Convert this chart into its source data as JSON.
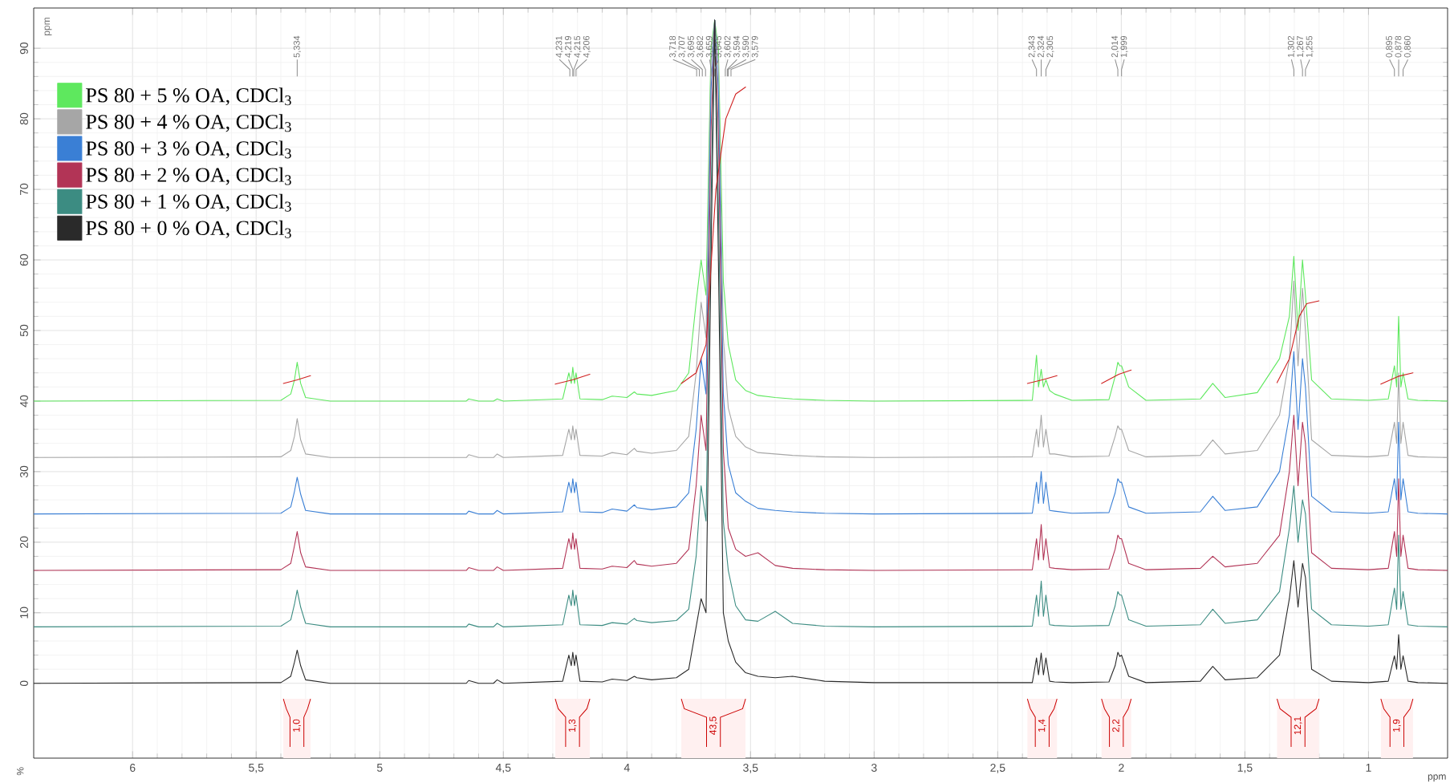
{
  "chart_data": {
    "type": "line",
    "xlabel": "ppm",
    "ylabel": "%",
    "xlim": [
      6.4,
      0.68
    ],
    "ylim": [
      -10.6,
      95.7
    ],
    "xticks": [
      6,
      {
        "value": 5.5,
        "label": "5,5"
      },
      5,
      {
        "value": 4.5,
        "label": "4,5"
      },
      4,
      {
        "value": 3.5,
        "label": "3,5"
      },
      3,
      {
        "value": 2.5,
        "label": "2,5"
      },
      2,
      {
        "value": 1.5,
        "label": "1,5"
      },
      1
    ],
    "yticks": [
      0,
      10,
      20,
      30,
      40,
      50,
      60,
      70,
      80,
      90
    ],
    "grid": true,
    "legend": "top left",
    "marker": "none",
    "line_style": "solid",
    "x": [
      6.4,
      5.4,
      5.36,
      5.345,
      5.334,
      5.32,
      5.3,
      5.2,
      4.65,
      4.64,
      4.6,
      4.54,
      4.525,
      4.5,
      4.26,
      4.235,
      4.225,
      4.219,
      4.212,
      4.206,
      4.19,
      4.1,
      4.06,
      4.0,
      3.97,
      3.96,
      3.9,
      3.8,
      3.75,
      3.72,
      3.7,
      3.68,
      3.66,
      3.645,
      3.63,
      3.61,
      3.59,
      3.56,
      3.52,
      3.47,
      3.4,
      3.33,
      3.2,
      3.0,
      2.36,
      2.343,
      2.335,
      2.324,
      2.315,
      2.305,
      2.29,
      2.27,
      2.2,
      2.05,
      2.025,
      2.014,
      2.006,
      1.999,
      1.97,
      1.9,
      1.68,
      1.63,
      1.58,
      1.45,
      1.36,
      1.32,
      1.302,
      1.285,
      1.267,
      1.255,
      1.23,
      1.15,
      1.0,
      0.92,
      0.895,
      0.886,
      0.878,
      0.869,
      0.86,
      0.84,
      0.8,
      0.68
    ],
    "series": [
      {
        "name": "PS 80 + 5 % OA, CDCl$_{3}$",
        "color": "#5ee85e",
        "values": [
          40,
          40.1,
          41,
          43,
          45.5,
          42.5,
          40.5,
          40,
          40,
          40.3,
          40,
          40,
          40.3,
          40,
          40.3,
          44,
          42.5,
          44.8,
          42.5,
          44,
          40.3,
          40.2,
          40.7,
          40.5,
          41.3,
          41,
          40.8,
          41.5,
          44,
          54,
          60,
          55,
          90,
          94,
          90,
          57,
          48,
          43,
          41.5,
          40.8,
          40.5,
          40.3,
          40.1,
          40,
          40.1,
          46.5,
          42,
          44.5,
          42,
          43,
          41.5,
          41,
          40.1,
          40.2,
          43.5,
          45.5,
          45,
          45,
          42,
          40.1,
          40.3,
          42.5,
          40.5,
          41.2,
          46,
          52,
          60.5,
          50,
          60,
          55,
          43,
          40.3,
          40.1,
          40.3,
          45,
          42,
          52,
          42,
          44,
          40.3,
          40.1,
          40
        ]
      },
      {
        "name": "PS 80 + 4 % OA, CDCl$_{3}$",
        "color": "#a6a6a6",
        "values": [
          32,
          32.1,
          33,
          35,
          37.5,
          34.5,
          32.5,
          32,
          32,
          32.4,
          32,
          32,
          32.5,
          32,
          32.3,
          36,
          34.5,
          36.5,
          34.5,
          36,
          32.3,
          32.2,
          32.7,
          32.4,
          33.3,
          32.9,
          32.6,
          33,
          35,
          44,
          54,
          49,
          88,
          94,
          88,
          49,
          39,
          35,
          33.5,
          32.7,
          32.5,
          32.3,
          32.1,
          32,
          32.1,
          36,
          33.5,
          38,
          33.5,
          36,
          32.5,
          32.5,
          32.1,
          32.2,
          35,
          36.5,
          36,
          36,
          33,
          32.1,
          32.3,
          34.5,
          32.5,
          33,
          38,
          46,
          57,
          45,
          56,
          50,
          34.5,
          32.3,
          32.1,
          32.3,
          37,
          34,
          44,
          34,
          37,
          32.3,
          32.1,
          32
        ]
      },
      {
        "name": "PS 80 + 3 % OA, CDCl$_{3}$",
        "color": "#3a7fd5",
        "values": [
          24,
          24.1,
          25,
          27.2,
          29.2,
          26.8,
          24.5,
          24,
          24,
          24.4,
          24,
          24,
          24.5,
          24,
          24.3,
          28.5,
          27,
          29,
          27,
          28.5,
          24.3,
          24.2,
          24.7,
          24.4,
          25.3,
          24.9,
          24.6,
          25,
          27,
          36,
          46,
          41,
          84,
          94,
          84,
          41,
          31,
          27,
          25.8,
          24.8,
          24.5,
          24.3,
          24.1,
          24,
          24.1,
          28.5,
          25.5,
          30,
          25.5,
          28.5,
          24.5,
          24.4,
          24.1,
          24.2,
          27,
          29,
          28.5,
          28.5,
          25,
          24.1,
          24.3,
          26.5,
          24.5,
          25,
          30,
          38,
          47,
          36,
          46,
          42,
          26.5,
          24.3,
          24.1,
          24.3,
          29,
          26,
          37,
          26,
          29,
          24.3,
          24.1,
          24
        ]
      },
      {
        "name": "PS 80 + 2 % OA, CDCl$_{3}$",
        "color": "#b23456",
        "values": [
          16,
          16.1,
          17,
          19.5,
          21.5,
          18.5,
          16.5,
          16,
          16,
          16.4,
          16,
          16,
          16.5,
          16,
          16.3,
          20.5,
          19,
          21.3,
          19,
          20.5,
          16.3,
          16.2,
          16.6,
          16.4,
          17.4,
          16.9,
          16.6,
          17,
          19,
          28,
          38,
          33,
          78,
          94,
          78,
          33,
          22,
          19,
          18,
          18.5,
          16.7,
          16.3,
          16.1,
          16,
          16.1,
          20.5,
          17.5,
          22.5,
          17.5,
          20.5,
          16.4,
          16.3,
          16.1,
          16.2,
          19,
          21,
          20.5,
          20.5,
          17,
          16.1,
          16.3,
          18,
          16.5,
          17,
          21,
          30,
          38,
          28,
          37,
          34,
          18.5,
          16.3,
          16.1,
          16.3,
          21.5,
          18,
          29,
          18,
          21,
          16.3,
          16.1,
          16
        ]
      },
      {
        "name": "PS 80 + 1 % OA, CDCl$_{3}$",
        "color": "#3c8c82",
        "values": [
          8,
          8.1,
          9,
          11.2,
          13.2,
          10.8,
          8.5,
          8,
          8,
          8.4,
          8,
          8,
          8.5,
          8,
          8.3,
          12.5,
          11,
          13.2,
          11,
          12.5,
          8.3,
          8.2,
          8.6,
          8.4,
          9.2,
          8.9,
          8.6,
          8.9,
          10.5,
          18,
          28,
          23,
          68,
          94,
          68,
          23,
          16,
          11,
          9,
          8.8,
          10.2,
          8.5,
          8.1,
          8,
          8.1,
          12.5,
          9.5,
          14.5,
          9.5,
          12.5,
          8.3,
          8.2,
          8.1,
          8.2,
          11,
          13,
          12.5,
          12.5,
          9,
          8.1,
          8.3,
          10.5,
          8.5,
          9,
          13,
          22,
          28,
          20,
          26,
          24,
          10.5,
          8.3,
          8.1,
          8.3,
          13.5,
          10.5,
          21,
          10.5,
          13,
          8.3,
          8.1,
          8
        ]
      },
      {
        "name": "PS 80 + 0 % OA, CDCl$_{3}$",
        "color": "#2a2a2a",
        "values": [
          0,
          0.1,
          1.0,
          3.0,
          4.7,
          2.5,
          0.5,
          0,
          0,
          0.4,
          0,
          0,
          0.5,
          0,
          0.3,
          4.0,
          2.5,
          4.4,
          2.5,
          4.0,
          0.3,
          0.2,
          0.6,
          0.4,
          1.0,
          0.8,
          0.5,
          0.8,
          2.0,
          8,
          12,
          10,
          60,
          94,
          60,
          10,
          6,
          3,
          1.5,
          1.0,
          0.8,
          1.0,
          0.3,
          0.1,
          0.1,
          3.6,
          1.2,
          4.3,
          1.2,
          3.6,
          0.3,
          0.2,
          0.1,
          0.2,
          2.5,
          4.4,
          3.8,
          4.0,
          1.0,
          0.1,
          0.3,
          2.4,
          0.5,
          0.8,
          4,
          12,
          17.4,
          10.8,
          17,
          15,
          2,
          0.3,
          0.1,
          0.3,
          3.9,
          2.0,
          6.9,
          2.0,
          3.9,
          0.3,
          0.1,
          0
        ]
      },
      {
        "type": "line",
        "color": "#d02020",
        "x": [
          5.39,
          5.334,
          5.28,
          4.6,
          4.29,
          4.22,
          4.15,
          4.0,
          3.78,
          3.72,
          3.68,
          3.64,
          3.6,
          3.56,
          3.52,
          3.0,
          2.38,
          2.32,
          2.26,
          2.2,
          2.08,
          2.01,
          1.96,
          1.5,
          1.37,
          1.32,
          1.28,
          1.25,
          1.2,
          1.0,
          0.95,
          0.88,
          0.82
        ],
        "values": [
          42.5,
          43,
          43.6,
          null,
          42.4,
          43,
          43.8,
          null,
          42.5,
          44,
          48,
          70,
          80,
          83.5,
          84.5,
          null,
          42.5,
          43,
          43.6,
          null,
          42.5,
          43.8,
          44.4,
          null,
          42.6,
          46,
          52,
          53.8,
          54.2,
          null,
          42.4,
          43.5,
          44
        ]
      }
    ],
    "annotations": [
      "ppm",
      "5,334",
      "4,231",
      "4,219",
      "4,215",
      "4,206",
      "3,718",
      "3,707",
      "3,695",
      "3,682",
      "3,659",
      "3,645",
      "3,602",
      "3,594",
      "3,590",
      "3,579",
      "2,343",
      "2,324",
      "2,305",
      "2,014",
      "1,999",
      "1,302",
      "1,267",
      "1,255",
      "0,895",
      "0,878",
      "0,860"
    ],
    "bands": [
      {
        "axis": "x",
        "from": 5.39,
        "to": 5.28,
        "label": "1,0"
      },
      {
        "axis": "x",
        "from": 4.29,
        "to": 4.15,
        "label": "1,3"
      },
      {
        "axis": "x",
        "from": 3.78,
        "to": 3.52,
        "label": "43,5"
      },
      {
        "axis": "x",
        "from": 2.38,
        "to": 2.26,
        "label": "1,4"
      },
      {
        "axis": "x",
        "from": 2.08,
        "to": 1.96,
        "label": "2,2"
      },
      {
        "axis": "x",
        "from": 1.37,
        "to": 1.2,
        "label": "12,1"
      },
      {
        "axis": "x",
        "from": 0.95,
        "to": 0.82,
        "label": "1,9"
      }
    ]
  }
}
